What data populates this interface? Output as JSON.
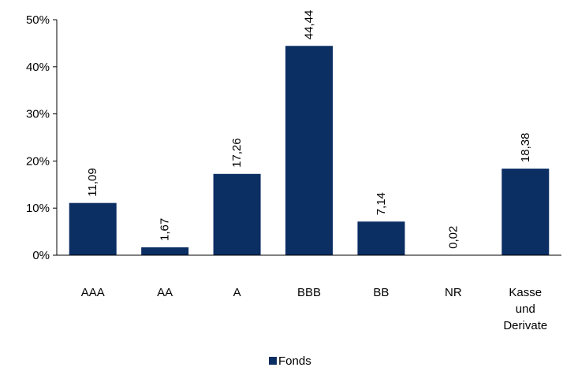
{
  "chart_data": {
    "type": "bar",
    "categories": [
      "AAA",
      "AA",
      "A",
      "BBB",
      "BB",
      "NR",
      "Kasse und Derivate"
    ],
    "category_lines": [
      [
        "AAA"
      ],
      [
        "AA"
      ],
      [
        "A"
      ],
      [
        "BBB"
      ],
      [
        "BB"
      ],
      [
        "NR"
      ],
      [
        "Kasse",
        "und",
        "Derivate"
      ]
    ],
    "series": [
      {
        "name": "Fonds",
        "values": [
          11.09,
          1.67,
          17.26,
          44.44,
          7.14,
          0.02,
          18.38
        ]
      }
    ],
    "data_labels": [
      "11,09",
      "1,67",
      "17,26",
      "44,44",
      "7,14",
      "0,02",
      "18,38"
    ],
    "ylim": [
      0,
      50
    ],
    "y_ticks": [
      0,
      10,
      20,
      30,
      40,
      50
    ],
    "y_tick_labels": [
      "0%",
      "10%",
      "20%",
      "30%",
      "40%",
      "50%"
    ],
    "grid": false,
    "legend_position": "bottom-center",
    "bar_color": "#0b2e63",
    "title": "",
    "xlabel": "",
    "ylabel": ""
  }
}
